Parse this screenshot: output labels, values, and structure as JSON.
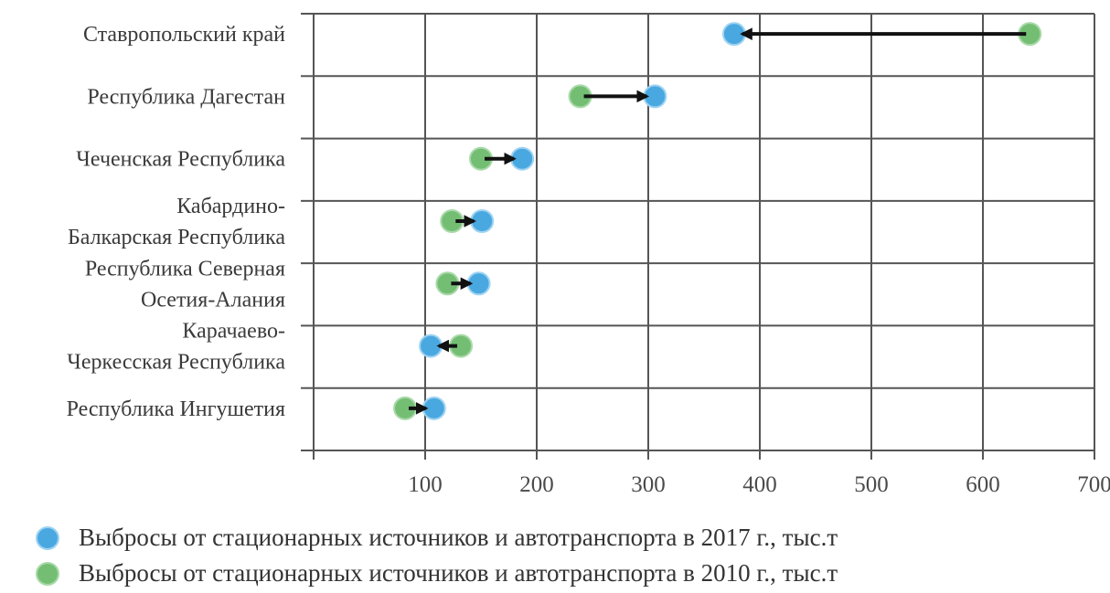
{
  "chart_data": {
    "type": "dumbbell",
    "categories": [
      "Ставропольский край",
      "Республика Дагестан",
      "Чеченская Республика",
      "Кабардино-\nБалкарская Республика",
      "Республика Северная\nОсетия-Алания",
      "Карачаево-\nЧеркесская Республика",
      "Республика Ингушетия"
    ],
    "series": [
      {
        "name": "Выбросы от стационарных источников и автотранспорта в 2017 г., тыс.т",
        "color": "#4aa8e0",
        "values": [
          377,
          306,
          187,
          151,
          148,
          105,
          108
        ]
      },
      {
        "name": "Выбросы от стационарных источников и автотранспорта в 2010 г., тыс.т",
        "color": "#74be74",
        "values": [
          642,
          239,
          150,
          124,
          120,
          132,
          82
        ]
      }
    ],
    "arrows": "from 2010 value to 2017 value",
    "x_ticks": [
      100,
      200,
      300,
      400,
      500,
      600,
      700
    ],
    "xlim": [
      0,
      700
    ],
    "grid": true,
    "legend_position": "bottom"
  }
}
